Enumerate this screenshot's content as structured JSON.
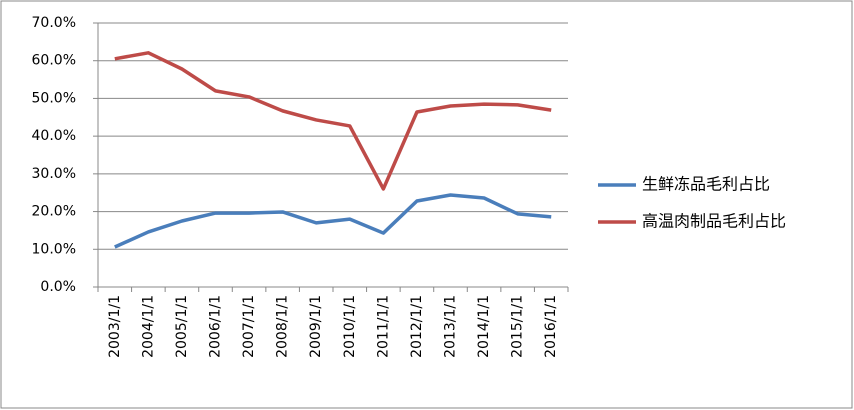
{
  "chart_data": {
    "type": "line",
    "categories": [
      "2003/1/1",
      "2004/1/1",
      "2005/1/1",
      "2006/1/1",
      "2007/1/1",
      "2008/1/1",
      "2009/1/1",
      "2010/1/1",
      "2011/1/1",
      "2012/1/1",
      "2013/1/1",
      "2014/1/1",
      "2015/1/1",
      "2016/1/1"
    ],
    "series": [
      {
        "name": "生鲜冻品毛利占比",
        "color": "#4a7ebb",
        "values": [
          10.6,
          14.6,
          17.5,
          19.6,
          19.6,
          19.9,
          17.0,
          18.0,
          14.3,
          22.8,
          24.4,
          23.6,
          19.4,
          18.6
        ]
      },
      {
        "name": "高温肉制品毛利占比",
        "color": "#be4b48",
        "values": [
          60.5,
          62.1,
          57.8,
          52.0,
          50.4,
          46.7,
          44.3,
          42.7,
          26.0,
          46.4,
          48.0,
          48.5,
          48.3,
          46.9
        ]
      }
    ],
    "ylim": [
      0,
      70
    ],
    "yticks": [
      {
        "value": 0,
        "label": "0.0%"
      },
      {
        "value": 10,
        "label": "10.0%"
      },
      {
        "value": 20,
        "label": "20.0%"
      },
      {
        "value": 30,
        "label": "30.0%"
      },
      {
        "value": 40,
        "label": "40.0%"
      },
      {
        "value": 50,
        "label": "50.0%"
      },
      {
        "value": 60,
        "label": "60.0%"
      },
      {
        "value": 70,
        "label": "70.0%"
      }
    ],
    "grid": true,
    "legend": "right"
  }
}
